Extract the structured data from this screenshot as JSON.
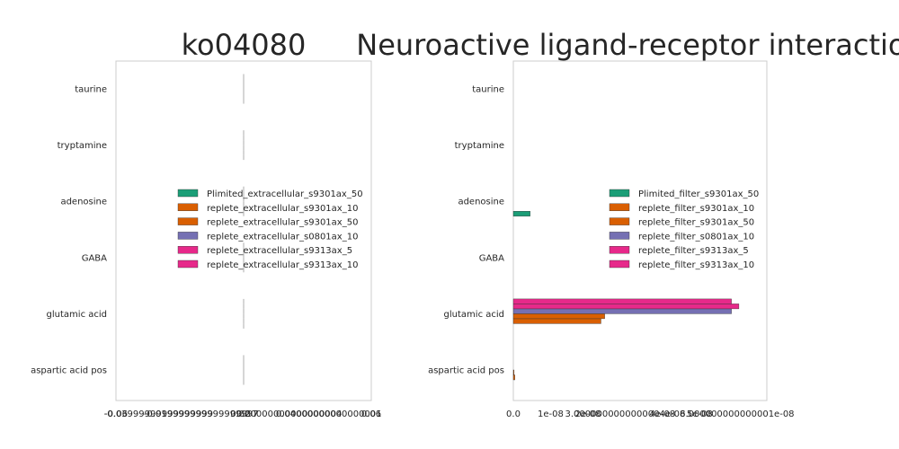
{
  "chart_data": [
    {
      "type": "bar",
      "orientation": "horizontal",
      "title": "ko04080",
      "xlabel": "",
      "ylabel": "",
      "categories": [
        "taurine",
        "tryptamine",
        "adenosine",
        "GABA",
        "glutamic acid",
        "aspartic acid pos"
      ],
      "x_tick_labels": [
        "-0.06",
        "-0.03999999999999999",
        "-0.019999999999999997",
        "0.0",
        "0.020000000000000004",
        "0.04000000000000001",
        "0.06"
      ],
      "xlim": [
        -0.06,
        0.06
      ],
      "series": [
        {
          "name": "Plimited_extracellular_s9301ax_50",
          "color": "#1b9e77",
          "values": [
            0,
            0,
            0,
            0,
            0,
            0
          ]
        },
        {
          "name": "replete_extracellular_s9301ax_10",
          "color": "#d95f02",
          "values": [
            0,
            0,
            0,
            0,
            0,
            0
          ]
        },
        {
          "name": "replete_extracellular_s9301ax_50",
          "color": "#d95f02",
          "values": [
            0,
            0,
            0,
            0,
            0,
            0
          ]
        },
        {
          "name": "replete_extracellular_s0801ax_10",
          "color": "#7570b3",
          "values": [
            0,
            0,
            0,
            0,
            0,
            0
          ]
        },
        {
          "name": "replete_extracellular_s9313ax_5",
          "color": "#e7298a",
          "values": [
            0,
            0,
            0,
            0,
            0,
            0
          ]
        },
        {
          "name": "replete_extracellular_s9313ax_10",
          "color": "#e7298a",
          "values": [
            0,
            0,
            0,
            0,
            0,
            0
          ]
        }
      ],
      "legend_position": "center-right",
      "grid": false
    },
    {
      "type": "bar",
      "orientation": "horizontal",
      "title": "Neuroactive ligand-receptor interaction",
      "xlabel": "",
      "ylabel": "",
      "categories": [
        "taurine",
        "tryptamine",
        "adenosine",
        "GABA",
        "glutamic acid",
        "aspartic acid pos"
      ],
      "x_ticks": [
        0,
        1e-08,
        2e-08,
        3e-08,
        4e-08,
        5e-08,
        6e-08
      ],
      "x_tick_labels": [
        "0.0",
        "1e-08",
        "2e-08",
        "3.0000000000000004e-08",
        "4e-08",
        "5e-08",
        "6.000000000000001e-08"
      ],
      "xlim": [
        0,
        6.8e-08
      ],
      "series": [
        {
          "name": "Plimited_filter_s9301ax_50",
          "color": "#1b9e77",
          "values": [
            0,
            0,
            4.5e-09,
            0,
            0,
            0
          ]
        },
        {
          "name": "replete_filter_s9301ax_10",
          "color": "#d95f02",
          "values": [
            0,
            0,
            0,
            0,
            2.35e-08,
            4e-10
          ]
        },
        {
          "name": "replete_filter_s9301ax_50",
          "color": "#d95f02",
          "values": [
            0,
            0,
            0,
            0,
            2.45e-08,
            2e-10
          ]
        },
        {
          "name": "replete_filter_s0801ax_10",
          "color": "#7570b3",
          "values": [
            0,
            0,
            0,
            0,
            5.85e-08,
            0
          ]
        },
        {
          "name": "replete_filter_s9313ax_5",
          "color": "#e7298a",
          "values": [
            0,
            0,
            0,
            0,
            6.05e-08,
            0
          ]
        },
        {
          "name": "replete_filter_s9313ax_10",
          "color": "#e7298a",
          "values": [
            0,
            0,
            0,
            0,
            5.85e-08,
            0
          ]
        }
      ],
      "legend_position": "center-right",
      "grid": false
    }
  ]
}
